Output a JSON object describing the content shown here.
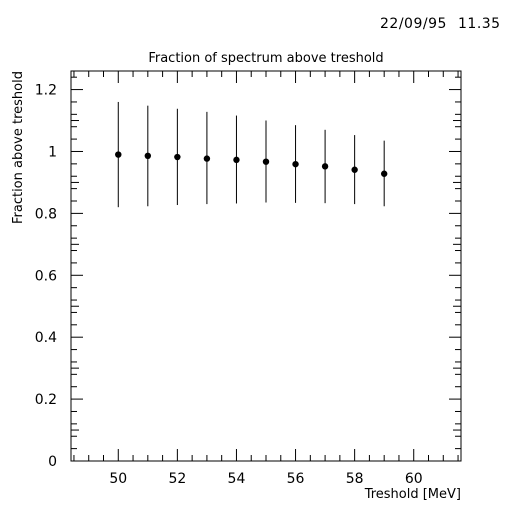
{
  "stamp": {
    "date": "22/09/95",
    "time": "11.35"
  },
  "chart_data": {
    "type": "scatter",
    "title": "Fraction of spectrum above treshold",
    "xlabel": "Treshold [MeV]",
    "ylabel": "Fraction above treshold",
    "xlim": [
      48.4,
      61.6
    ],
    "ylim": [
      0,
      1.26
    ],
    "xticks": [
      50,
      52,
      54,
      56,
      58,
      60
    ],
    "xtick_labels": [
      "50",
      "52",
      "54",
      "56",
      "58",
      "60"
    ],
    "yticks": [
      0,
      0.2,
      0.4,
      0.6,
      0.8,
      1,
      1.2
    ],
    "ytick_labels": [
      "0",
      "0.2",
      "0.4",
      "0.6",
      "0.8",
      "1",
      "1.2"
    ],
    "grid": false,
    "error_bars": true,
    "series": [
      {
        "x": [
          50,
          51,
          52,
          53,
          54,
          55,
          56,
          57,
          58,
          59
        ],
        "y": [
          0.99,
          0.986,
          0.982,
          0.977,
          0.973,
          0.967,
          0.959,
          0.952,
          0.941,
          0.928
        ],
        "y_low": [
          0.82,
          0.823,
          0.827,
          0.83,
          0.832,
          0.835,
          0.834,
          0.833,
          0.83,
          0.823
        ],
        "y_high": [
          1.16,
          1.148,
          1.138,
          1.128,
          1.116,
          1.1,
          1.085,
          1.07,
          1.053,
          1.035
        ]
      }
    ]
  }
}
